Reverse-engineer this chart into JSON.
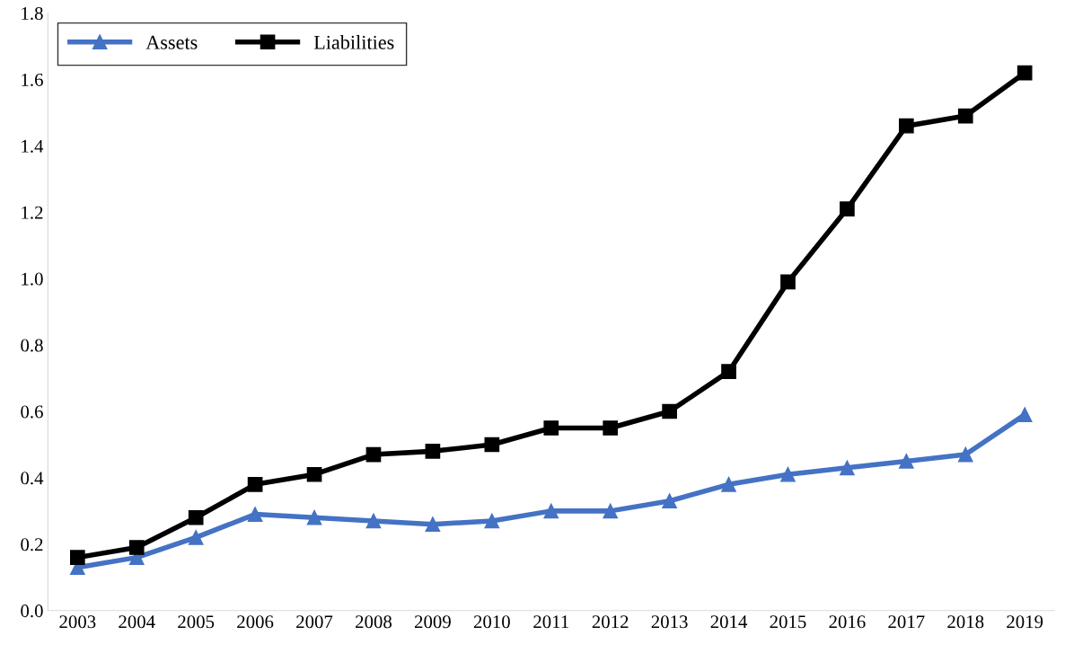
{
  "chart_data": {
    "type": "line",
    "categories": [
      "2003",
      "2004",
      "2005",
      "2006",
      "2007",
      "2008",
      "2009",
      "2010",
      "2011",
      "2012",
      "2013",
      "2014",
      "2015",
      "2016",
      "2017",
      "2018",
      "2019"
    ],
    "series": [
      {
        "name": "Assets",
        "color": "#4472c4",
        "marker": "triangle",
        "values": [
          0.13,
          0.16,
          0.22,
          0.29,
          0.28,
          0.27,
          0.26,
          0.27,
          0.3,
          0.3,
          0.33,
          0.38,
          0.41,
          0.43,
          0.45,
          0.47,
          0.59
        ]
      },
      {
        "name": "Liabilities",
        "color": "#000000",
        "marker": "square",
        "values": [
          0.16,
          0.19,
          0.28,
          0.38,
          0.41,
          0.47,
          0.48,
          0.5,
          0.55,
          0.55,
          0.6,
          0.72,
          0.99,
          1.21,
          1.46,
          1.49,
          1.62
        ]
      }
    ],
    "ylim": [
      0,
      1.8
    ],
    "yticks": [
      {
        "value": 0,
        "label": "0.0"
      },
      {
        "value": 0.2,
        "label": "0.2"
      },
      {
        "value": 0.4,
        "label": "0.4"
      },
      {
        "value": 0.6,
        "label": "0.6"
      },
      {
        "value": 0.8,
        "label": "0.8"
      },
      {
        "value": 1.0,
        "label": "1.0"
      },
      {
        "value": 1.2,
        "label": "1.2"
      },
      {
        "value": 1.4,
        "label": "1.4"
      },
      {
        "value": 1.6,
        "label": "1.6"
      },
      {
        "value": 1.8,
        "label": "1.8"
      }
    ],
    "legend": "top left"
  }
}
